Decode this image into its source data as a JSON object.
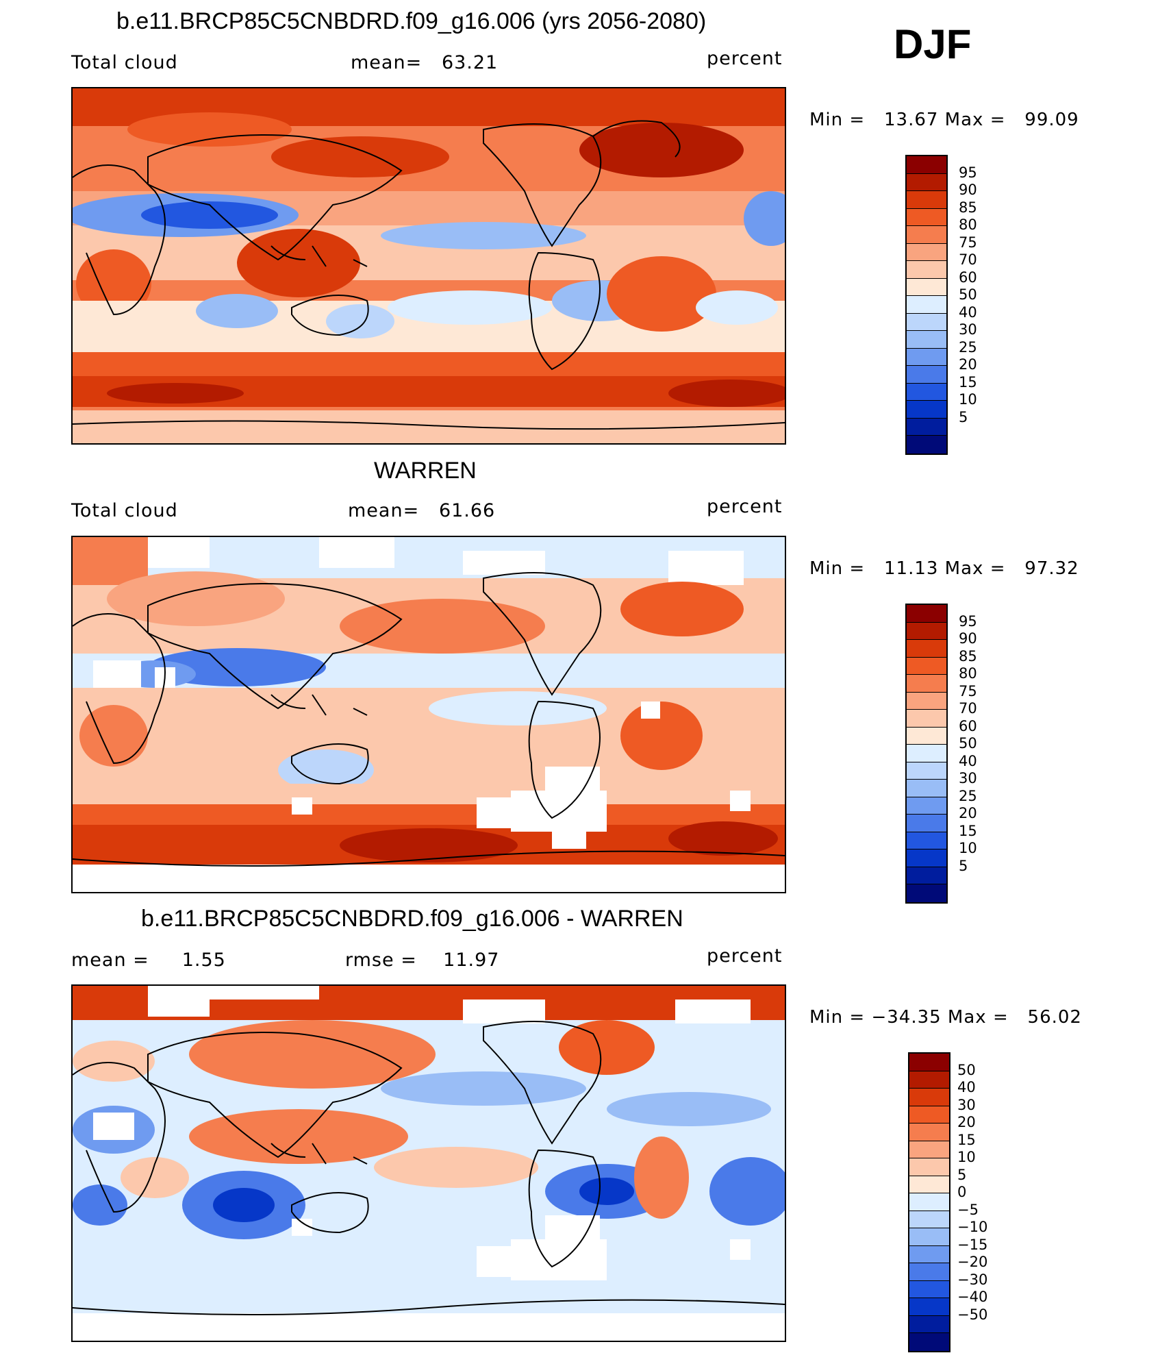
{
  "season": "DJF",
  "panels": [
    {
      "title": "b.e11.BRCP85C5CNBDRD.f09_g16.006 (yrs 2056-2080)",
      "left_label": "Total cloud",
      "center_label": "mean=   63.21",
      "right_label": "percent",
      "minmax": "Min =   13.67 Max =   99.09",
      "colorbar": {
        "colors": [
          "#8b0000",
          "#b31b00",
          "#d93a0a",
          "#ee5a24",
          "#f57d4e",
          "#f9a47f",
          "#fcc8ac",
          "#fee8d6",
          "#ddeeff",
          "#bcd6fb",
          "#99bdf6",
          "#6f9bf0",
          "#4a7ae9",
          "#2257e0",
          "#0637c8",
          "#001d9e",
          "#000a78"
        ],
        "labels": [
          "95",
          "90",
          "85",
          "80",
          "75",
          "70",
          "60",
          "50",
          "40",
          "30",
          "25",
          "20",
          "15",
          "10",
          "5"
        ]
      }
    },
    {
      "title": "WARREN",
      "left_label": "Total cloud",
      "center_label": "mean=   61.66",
      "right_label": "percent",
      "minmax": "Min =   11.13 Max =   97.32",
      "colorbar": {
        "colors": [
          "#8b0000",
          "#b31b00",
          "#d93a0a",
          "#ee5a24",
          "#f57d4e",
          "#f9a47f",
          "#fcc8ac",
          "#fee8d6",
          "#ddeeff",
          "#bcd6fb",
          "#99bdf6",
          "#6f9bf0",
          "#4a7ae9",
          "#2257e0",
          "#0637c8",
          "#001d9e",
          "#000a78"
        ],
        "labels": [
          "95",
          "90",
          "85",
          "80",
          "75",
          "70",
          "60",
          "50",
          "40",
          "30",
          "25",
          "20",
          "15",
          "10",
          "5"
        ]
      }
    },
    {
      "title": "b.e11.BRCP85C5CNBDRD.f09_g16.006 - WARREN",
      "left_label": "mean =     1.55",
      "center_label": "rmse =    11.97",
      "right_label": "percent",
      "minmax": "Min = −34.35 Max =   56.02",
      "colorbar": {
        "colors": [
          "#8b0000",
          "#b31b00",
          "#d93a0a",
          "#ee5a24",
          "#f57d4e",
          "#f9a47f",
          "#fcc8ac",
          "#fee8d6",
          "#ddeeff",
          "#bcd6fb",
          "#99bdf6",
          "#6f9bf0",
          "#4a7ae9",
          "#2257e0",
          "#0637c8",
          "#001d9e",
          "#000a78"
        ],
        "labels": [
          "50",
          "40",
          "30",
          "20",
          "15",
          "10",
          "5",
          "0",
          "−5",
          "−10",
          "−15",
          "−20",
          "−30",
          "−40",
          "−50"
        ]
      }
    }
  ]
}
